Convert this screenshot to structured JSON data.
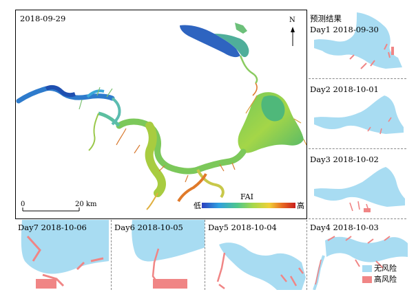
{
  "main_map": {
    "date": "2018-09-29",
    "north_label": "N",
    "scale_start": "0",
    "scale_end": "20 km",
    "legend_title": "FAI",
    "legend_low": "低",
    "legend_high": "高",
    "legend_colors": [
      "#2b3fbf",
      "#2f9fe0",
      "#4fc78c",
      "#a8d84a",
      "#f0d038",
      "#e86a22",
      "#c81e1e"
    ]
  },
  "prediction_title": "预测结果",
  "forecasts": [
    {
      "day": "Day1",
      "date": "2018-09-30"
    },
    {
      "day": "Day2",
      "date": "2018-10-01"
    },
    {
      "day": "Day3",
      "date": "2018-10-02"
    },
    {
      "day": "Day4",
      "date": "2018-10-03"
    },
    {
      "day": "Day5",
      "date": "2018-10-04"
    },
    {
      "day": "Day6",
      "date": "2018-10-05"
    },
    {
      "day": "Day7",
      "date": "2018-10-06"
    }
  ],
  "risk_legend": {
    "no_risk": "无风险",
    "high_risk": "高风险",
    "no_risk_color": "#a8dcf2",
    "high_risk_color": "#f08585"
  }
}
